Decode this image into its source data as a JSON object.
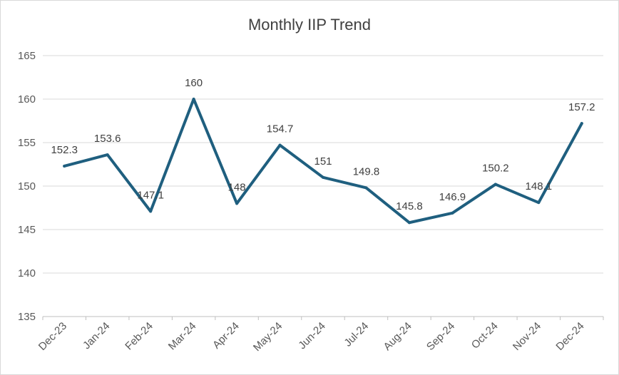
{
  "chart_data": {
    "type": "line",
    "title": "Monthly IIP Trend",
    "xlabel": "",
    "ylabel": "",
    "ylim": [
      135,
      165
    ],
    "yticks": [
      135,
      140,
      145,
      150,
      155,
      160,
      165
    ],
    "grid": true,
    "legend": "none",
    "categories": [
      "Dec-23",
      "Jan-24",
      "Feb-24",
      "Mar-24",
      "Apr-24",
      "May-24",
      "Jun-24",
      "Jul-24",
      "Aug-24",
      "Sep-24",
      "Oct-24",
      "Nov-24",
      "Dec-24"
    ],
    "series": [
      {
        "name": "IIP",
        "color": "#1f5f7f",
        "values": [
          152.3,
          153.6,
          147.1,
          160,
          148,
          154.7,
          151,
          149.8,
          145.8,
          146.9,
          150.2,
          148.1,
          157.2
        ],
        "labels": [
          "152.3",
          "153.6",
          "147.1",
          "160",
          "148",
          "154.7",
          "151",
          "149.8",
          "145.8",
          "146.9",
          "150.2",
          "148.1",
          "157.2"
        ]
      }
    ]
  }
}
